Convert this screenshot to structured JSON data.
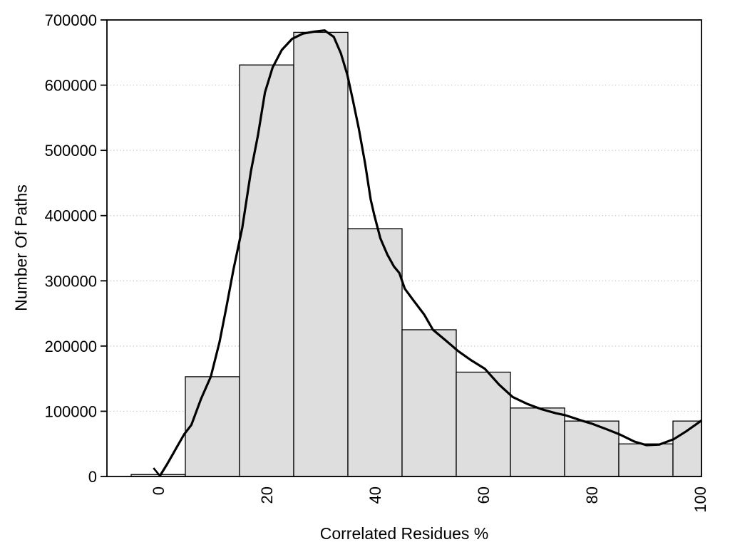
{
  "chart_data": {
    "type": "bar",
    "subtype": "histogram-with-density-curve",
    "title": "",
    "xlabel": "Correlated Residues %",
    "ylabel": "Number Of Paths",
    "xlim": [
      -9.5,
      100.3
    ],
    "ylim": [
      0,
      700000
    ],
    "x_ticks": [
      0,
      20,
      40,
      60,
      80,
      100
    ],
    "x_tick_labels": [
      "0",
      "20",
      "40",
      "60",
      "80",
      "100"
    ],
    "x_tick_label_rotation_deg": -90,
    "y_ticks": [
      0,
      100000,
      200000,
      300000,
      400000,
      500000,
      600000,
      700000
    ],
    "y_tick_labels": [
      "0",
      "100000",
      "200000",
      "300000",
      "400000",
      "500000",
      "600000",
      "700000"
    ],
    "grid": {
      "horizontal_dotted_at": [
        100000,
        200000,
        300000,
        400000,
        500000,
        600000
      ],
      "vertical": false
    },
    "legend": null,
    "bars": {
      "bin_start": -5,
      "bin_width": 10,
      "bin_centers": [
        0,
        10,
        20,
        30,
        40,
        50,
        60,
        70,
        80,
        90,
        100
      ],
      "counts": [
        3000,
        153000,
        631000,
        681000,
        380000,
        225000,
        160000,
        105000,
        85000,
        50000,
        85000
      ]
    },
    "density_curve": {
      "has_arrow_tip_at_start": true,
      "points": [
        [
          0.3,
          1000
        ],
        [
          1.5,
          17000
        ],
        [
          2.6,
          33000
        ],
        [
          3.7,
          49000
        ],
        [
          4.8,
          65000
        ],
        [
          6.1,
          79000
        ],
        [
          7.9,
          119000
        ],
        [
          9.7,
          153000
        ],
        [
          11.3,
          206000
        ],
        [
          12.6,
          261000
        ],
        [
          13.9,
          318000
        ],
        [
          15.5,
          381000
        ],
        [
          17.1,
          468000
        ],
        [
          18.4,
          523000
        ],
        [
          19.7,
          589000
        ],
        [
          21.1,
          627000
        ],
        [
          22.8,
          654000
        ],
        [
          24.7,
          671000
        ],
        [
          26.7,
          679000
        ],
        [
          28.7,
          682000
        ],
        [
          30.7,
          684000
        ],
        [
          32.4,
          674000
        ],
        [
          33.7,
          649000
        ],
        [
          34.9,
          616000
        ],
        [
          35.9,
          578000
        ],
        [
          37.0,
          534000
        ],
        [
          38.2,
          479000
        ],
        [
          39.2,
          425000
        ],
        [
          39.9,
          400000
        ],
        [
          41.0,
          365000
        ],
        [
          42.3,
          340000
        ],
        [
          43.5,
          322000
        ],
        [
          44.5,
          312000
        ],
        [
          45.5,
          288000
        ],
        [
          47.1,
          270000
        ],
        [
          49.1,
          248000
        ],
        [
          50.7,
          225000
        ],
        [
          53.0,
          209000
        ],
        [
          55.4,
          192000
        ],
        [
          57.6,
          179000
        ],
        [
          60.3,
          165000
        ],
        [
          62.9,
          141000
        ],
        [
          65.4,
          122000
        ],
        [
          68.2,
          111000
        ],
        [
          70.8,
          103000
        ],
        [
          73.4,
          97000
        ],
        [
          75.1,
          94000
        ],
        [
          78.0,
          86000
        ],
        [
          80.0,
          81000
        ],
        [
          82.6,
          73000
        ],
        [
          85.3,
          64000
        ],
        [
          87.9,
          53500
        ],
        [
          90.1,
          48000
        ],
        [
          92.5,
          49000
        ],
        [
          95.1,
          57000
        ],
        [
          97.4,
          69000
        ],
        [
          99.1,
          79000
        ],
        [
          100.3,
          86000
        ]
      ]
    },
    "colors": {
      "background": "#ffffff",
      "bar_fill": "#dedede",
      "bar_border": "#000000",
      "curve": "#000000",
      "grid": "#c0c0c0",
      "axis": "#000000",
      "text": "#000000"
    }
  }
}
